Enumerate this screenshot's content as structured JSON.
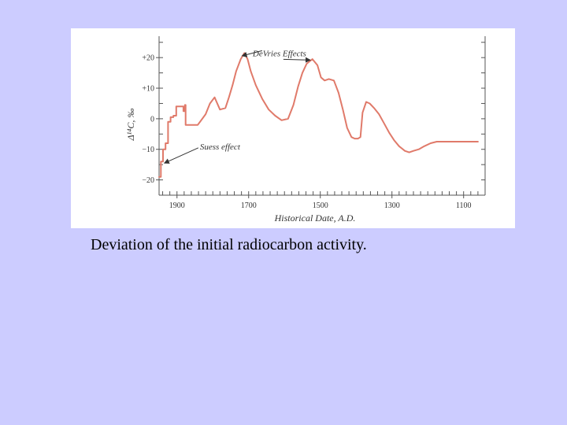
{
  "caption": "Deviation of the initial radiocarbon activity.",
  "chart_data": {
    "type": "line",
    "title": "",
    "xlabel": "Historical Date, A.D.",
    "ylabel": "Δ¹⁴C, ‰",
    "x_reversed": true,
    "xlim": [
      1950,
      1040
    ],
    "ylim": [
      -25,
      27
    ],
    "x_ticks": [
      {
        "value": 1900,
        "label": "1900"
      },
      {
        "value": 1700,
        "label": "1700"
      },
      {
        "value": 1500,
        "label": "1500"
      },
      {
        "value": 1300,
        "label": "1300"
      },
      {
        "value": 1100,
        "label": "1100"
      }
    ],
    "y_ticks": [
      {
        "value": 20,
        "label": "+20"
      },
      {
        "value": 10,
        "label": "+10"
      },
      {
        "value": 0,
        "label": "0"
      },
      {
        "value": -10,
        "label": "−10"
      },
      {
        "value": -20,
        "label": "−20"
      }
    ],
    "series": [
      {
        "color": "#e07a6a",
        "x": [
          1950,
          1945,
          1945,
          1939,
          1939,
          1932,
          1932,
          1925,
          1925,
          1918,
          1918,
          1910,
          1910,
          1902,
          1902,
          1882,
          1882,
          1878,
          1878,
          1876,
          1876,
          1850,
          1842,
          1820,
          1808,
          1795,
          1780,
          1765,
          1755,
          1745,
          1735,
          1722,
          1712,
          1703,
          1694,
          1680,
          1662,
          1644,
          1626,
          1608,
          1590,
          1575,
          1562,
          1550,
          1538,
          1522,
          1508,
          1498,
          1488,
          1476,
          1462,
          1449,
          1437,
          1425,
          1413,
          1404,
          1395,
          1388,
          1382,
          1372,
          1362,
          1350,
          1336,
          1322,
          1308,
          1294,
          1280,
          1264,
          1252,
          1240,
          1225,
          1210,
          1192,
          1175,
          1155,
          1135,
          1110,
          1080,
          1060
        ],
        "y": [
          -19,
          -19,
          -14,
          -14,
          -10,
          -10,
          -8,
          -8,
          -1,
          -1,
          0.5,
          0.5,
          1,
          1,
          4,
          4,
          2.5,
          2.5,
          4.5,
          4.5,
          -2,
          -2,
          -2,
          1.5,
          5,
          7,
          3,
          3.5,
          7,
          11,
          15.5,
          19.5,
          21.5,
          19.5,
          15.5,
          11,
          6.5,
          3,
          1,
          -0.5,
          0,
          4.5,
          10.5,
          15,
          18,
          19.5,
          17.5,
          13.5,
          12.5,
          13,
          12.5,
          8.5,
          3,
          -3,
          -6,
          -6.5,
          -6.5,
          -6,
          2,
          5.5,
          5,
          3.5,
          1.5,
          -1.5,
          -4.5,
          -7,
          -9,
          -10.5,
          -11,
          -10.5,
          -10,
          -9,
          -8,
          -7.5,
          -7.5,
          -7.5,
          -7.5,
          -7.5,
          -7.5
        ]
      }
    ],
    "annotations": [
      {
        "text": "DeVries Effects",
        "x": 1614,
        "y": 21.5
      },
      {
        "text": "Suess effect",
        "x": 1836,
        "y": -9
      }
    ]
  }
}
